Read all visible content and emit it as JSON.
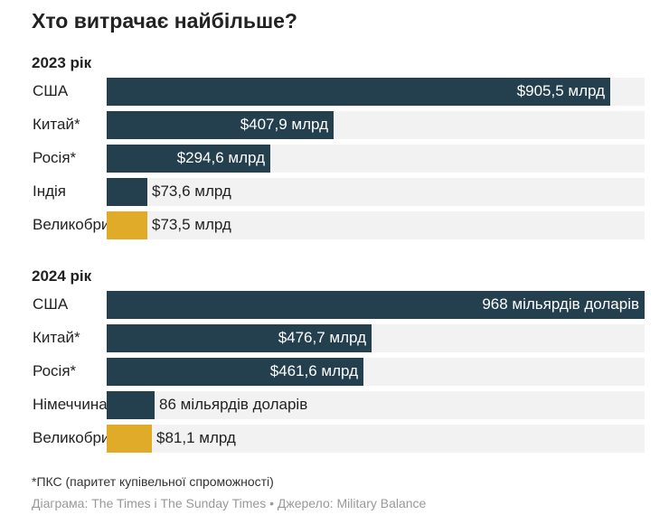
{
  "title": "Хто витрачає найбільше?",
  "chart_data": [
    {
      "type": "bar",
      "orientation": "horizontal",
      "title": "2023 рік",
      "xlim": [
        0,
        968
      ],
      "categories": [
        "США",
        "Китай*",
        "Росія*",
        "Індія",
        "Великобританія"
      ],
      "values": [
        905.5,
        407.9,
        294.6,
        73.6,
        73.5
      ],
      "labels": [
        "$905,5 млрд",
        "$407,9 млрд",
        "$294,6 млрд",
        "$73,6 млрд",
        "$73,5 млрд"
      ],
      "highlight": [
        false,
        false,
        false,
        false,
        true
      ]
    },
    {
      "type": "bar",
      "orientation": "horizontal",
      "title": "2024 рік",
      "xlim": [
        0,
        968
      ],
      "categories": [
        "США",
        "Китай*",
        "Росія*",
        "Німеччина",
        "Великобританія"
      ],
      "values": [
        968,
        476.7,
        461.6,
        86,
        81.1
      ],
      "labels": [
        "968 мільярдів доларів",
        "$476,7 млрд",
        "$461,6 млрд",
        "86 мільярдів доларів",
        "$81,1 млрд"
      ],
      "highlight": [
        false,
        false,
        false,
        false,
        true
      ]
    }
  ],
  "colors": {
    "bar": "#24404f",
    "highlight": "#e0ab29",
    "track": "#f2f2f2"
  },
  "note": "*ПКС (паритет купівельної спроможності)",
  "source": "Діаграма: The Times і The Sunday Times  •  Джерело: Military Balance"
}
